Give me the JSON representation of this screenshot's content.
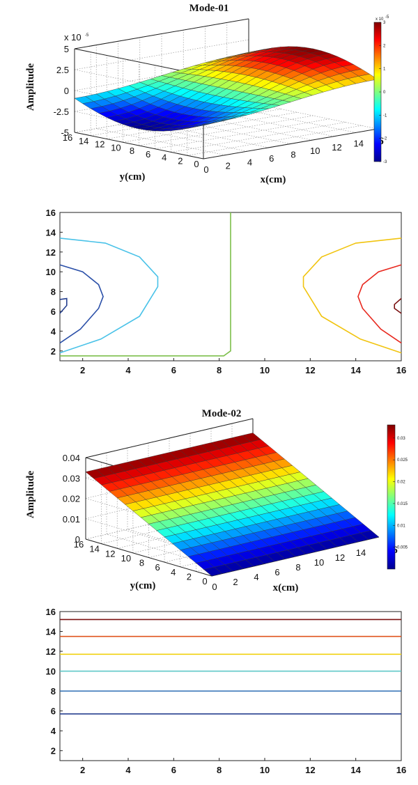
{
  "chart_data": [
    {
      "type": "surface3d",
      "title": "Mode-01",
      "xlabel": "x(cm)",
      "ylabel": "y(cm)",
      "zlabel": "Amplitude",
      "exponent_label": "x 10",
      "exponent_power": "-5",
      "x_ticks": [
        "0",
        "2",
        "4",
        "6",
        "8",
        "10",
        "12",
        "14"
      ],
      "y_ticks": [
        "16",
        "14",
        "12",
        "10",
        "8",
        "6",
        "4",
        "2",
        "0"
      ],
      "z_ticks": [
        "5",
        "2.5",
        "0",
        "-2.5",
        "-5"
      ],
      "x_range": [
        0,
        16
      ],
      "y_range": [
        0,
        16
      ],
      "z_range": [
        -5,
        5
      ],
      "colorbar": {
        "exponent": "x 10",
        "exponent_power": "-5",
        "range": [
          -3,
          3
        ],
        "ticks": [
          "3",
          "2",
          "1",
          "0",
          "-1",
          "-2",
          "-3"
        ]
      },
      "function": "antisymmetric half-sine in x, amplitude 3e-5",
      "stray_glyph": "6"
    },
    {
      "type": "contour",
      "xlim": [
        1,
        16
      ],
      "ylim": [
        1,
        16
      ],
      "x_ticks": [
        "2",
        "4",
        "6",
        "8",
        "10",
        "12",
        "14",
        "16"
      ],
      "y_ticks": [
        "2",
        "4",
        "6",
        "8",
        "10",
        "12",
        "14",
        "16"
      ],
      "levels": [
        {
          "name": "neg-high",
          "color": "#26408f"
        },
        {
          "name": "neg-mid",
          "color": "#2a4fa8"
        },
        {
          "name": "neg-low",
          "color": "#49c2e8"
        },
        {
          "name": "zero",
          "color": "#7dbf4b"
        },
        {
          "name": "pos-low",
          "color": "#f1c40f"
        },
        {
          "name": "pos-mid",
          "color": "#e8281e"
        },
        {
          "name": "pos-high",
          "color": "#7a1010"
        }
      ],
      "zero_line": {
        "x": [
          1,
          8.2,
          8.5,
          8.5
        ],
        "y": [
          1.5,
          1.5,
          2,
          16
        ]
      },
      "left_contours": [
        {
          "color": "#49c2e8",
          "points": [
            [
              1,
              1.8
            ],
            [
              2.8,
              3.2
            ],
            [
              4.5,
              5.5
            ],
            [
              5.3,
              8.5
            ],
            [
              5.3,
              9.5
            ],
            [
              4.5,
              11.5
            ],
            [
              3,
              12.9
            ],
            [
              1,
              13.4
            ]
          ]
        },
        {
          "color": "#2a4fa8",
          "points": [
            [
              1,
              2.8
            ],
            [
              1.9,
              4.2
            ],
            [
              2.7,
              6.3
            ],
            [
              2.9,
              7.5
            ],
            [
              2.7,
              8.7
            ],
            [
              2,
              10
            ],
            [
              1,
              10.7
            ]
          ]
        },
        {
          "color": "#26408f",
          "points": [
            [
              1,
              5.8
            ],
            [
              1.3,
              6.6
            ],
            [
              1.3,
              7.3
            ],
            [
              1,
              7.2
            ]
          ]
        }
      ],
      "right_contours": [
        {
          "color": "#f1c40f",
          "points": [
            [
              16,
              13.4
            ],
            [
              14,
              12.9
            ],
            [
              12.5,
              11.5
            ],
            [
              11.7,
              9.5
            ],
            [
              11.7,
              8.5
            ],
            [
              12.5,
              5.5
            ],
            [
              14.2,
              3.2
            ],
            [
              16,
              1.8
            ]
          ]
        },
        {
          "color": "#e8281e",
          "points": [
            [
              16,
              10.7
            ],
            [
              15,
              10
            ],
            [
              14.3,
              8.7
            ],
            [
              14.1,
              7.5
            ],
            [
              14.3,
              6.3
            ],
            [
              15.1,
              4.2
            ],
            [
              16,
              2.8
            ]
          ]
        },
        {
          "color": "#7a1010",
          "points": [
            [
              16,
              7.3
            ],
            [
              15.7,
              6.7
            ],
            [
              15.7,
              6.3
            ],
            [
              16,
              5.8
            ]
          ]
        }
      ]
    },
    {
      "type": "surface3d",
      "title": "Mode-02",
      "xlabel": "x(cm)",
      "ylabel": "y(cm)",
      "zlabel": "Amplitude",
      "x_ticks": [
        "0",
        "2",
        "4",
        "6",
        "8",
        "10",
        "12",
        "14"
      ],
      "y_ticks": [
        "16",
        "14",
        "12",
        "10",
        "8",
        "6",
        "4",
        "2",
        "0"
      ],
      "z_ticks": [
        "0.04",
        "0.03",
        "0.02",
        "0.01",
        "0"
      ],
      "x_range": [
        0,
        16
      ],
      "y_range": [
        0,
        16
      ],
      "z_range": [
        0,
        0.04
      ],
      "colorbar": {
        "range": [
          0,
          0.033
        ],
        "ticks": [
          "0.03",
          "0.025",
          "0.02",
          "0.015",
          "0.01",
          "0.005"
        ]
      },
      "function": "linear ramp in y, up to 0.033",
      "stray_glyph": "6"
    },
    {
      "type": "contour",
      "xlim": [
        1,
        16
      ],
      "ylim": [
        1,
        16
      ],
      "x_ticks": [
        "2",
        "4",
        "6",
        "8",
        "10",
        "12",
        "14",
        "16"
      ],
      "y_ticks": [
        "2",
        "4",
        "6",
        "8",
        "10",
        "12",
        "14",
        "16"
      ],
      "lines": [
        {
          "y": 15.2,
          "color": "#7a1010"
        },
        {
          "y": 13.5,
          "color": "#e0541e"
        },
        {
          "y": 11.7,
          "color": "#f1d20f"
        },
        {
          "y": 10.0,
          "color": "#5fc8c8"
        },
        {
          "y": 8.0,
          "color": "#2d6fb4"
        },
        {
          "y": 5.7,
          "color": "#26408f"
        }
      ]
    }
  ]
}
